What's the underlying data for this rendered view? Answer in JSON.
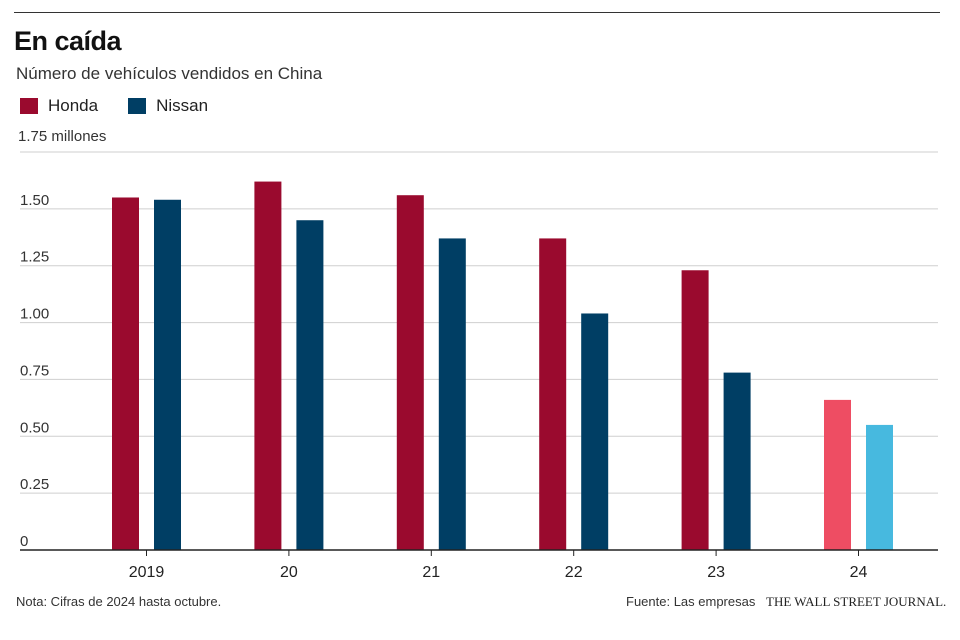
{
  "chart_data": {
    "type": "bar",
    "title": "En caída",
    "subtitle": "Número de vehículos vendidos en China",
    "unit_label": "1.75 millones",
    "categories": [
      "2019",
      "20",
      "21",
      "22",
      "23",
      "24"
    ],
    "series": [
      {
        "name": "Honda",
        "color": "#9a0a2e",
        "values": [
          1.55,
          1.62,
          1.56,
          1.37,
          1.23,
          0.66
        ],
        "colors": [
          "#9a0a2e",
          "#9a0a2e",
          "#9a0a2e",
          "#9a0a2e",
          "#9a0a2e",
          "#ee4d63"
        ]
      },
      {
        "name": "Nissan",
        "color": "#003e64",
        "values": [
          1.54,
          1.45,
          1.37,
          1.04,
          0.78,
          0.55
        ],
        "colors": [
          "#003e64",
          "#003e64",
          "#003e64",
          "#003e64",
          "#003e64",
          "#47b9df"
        ]
      }
    ],
    "yticks": [
      {
        "value": 0,
        "label": "0"
      },
      {
        "value": 0.25,
        "label": "0.25"
      },
      {
        "value": 0.5,
        "label": "0.50"
      },
      {
        "value": 0.75,
        "label": "0.75"
      },
      {
        "value": 1.0,
        "label": "1.00"
      },
      {
        "value": 1.25,
        "label": "1.25"
      },
      {
        "value": 1.5,
        "label": "1.50"
      },
      {
        "value": 1.75,
        "label": "1.75"
      }
    ],
    "ylim": [
      0,
      1.75
    ],
    "grid": true,
    "legend_position": "top-left",
    "note": "Nota: Cifras de 2024 hasta octubre.",
    "source": "Fuente: Las empresas",
    "publisher": "THE WALL STREET JOURNAL."
  }
}
